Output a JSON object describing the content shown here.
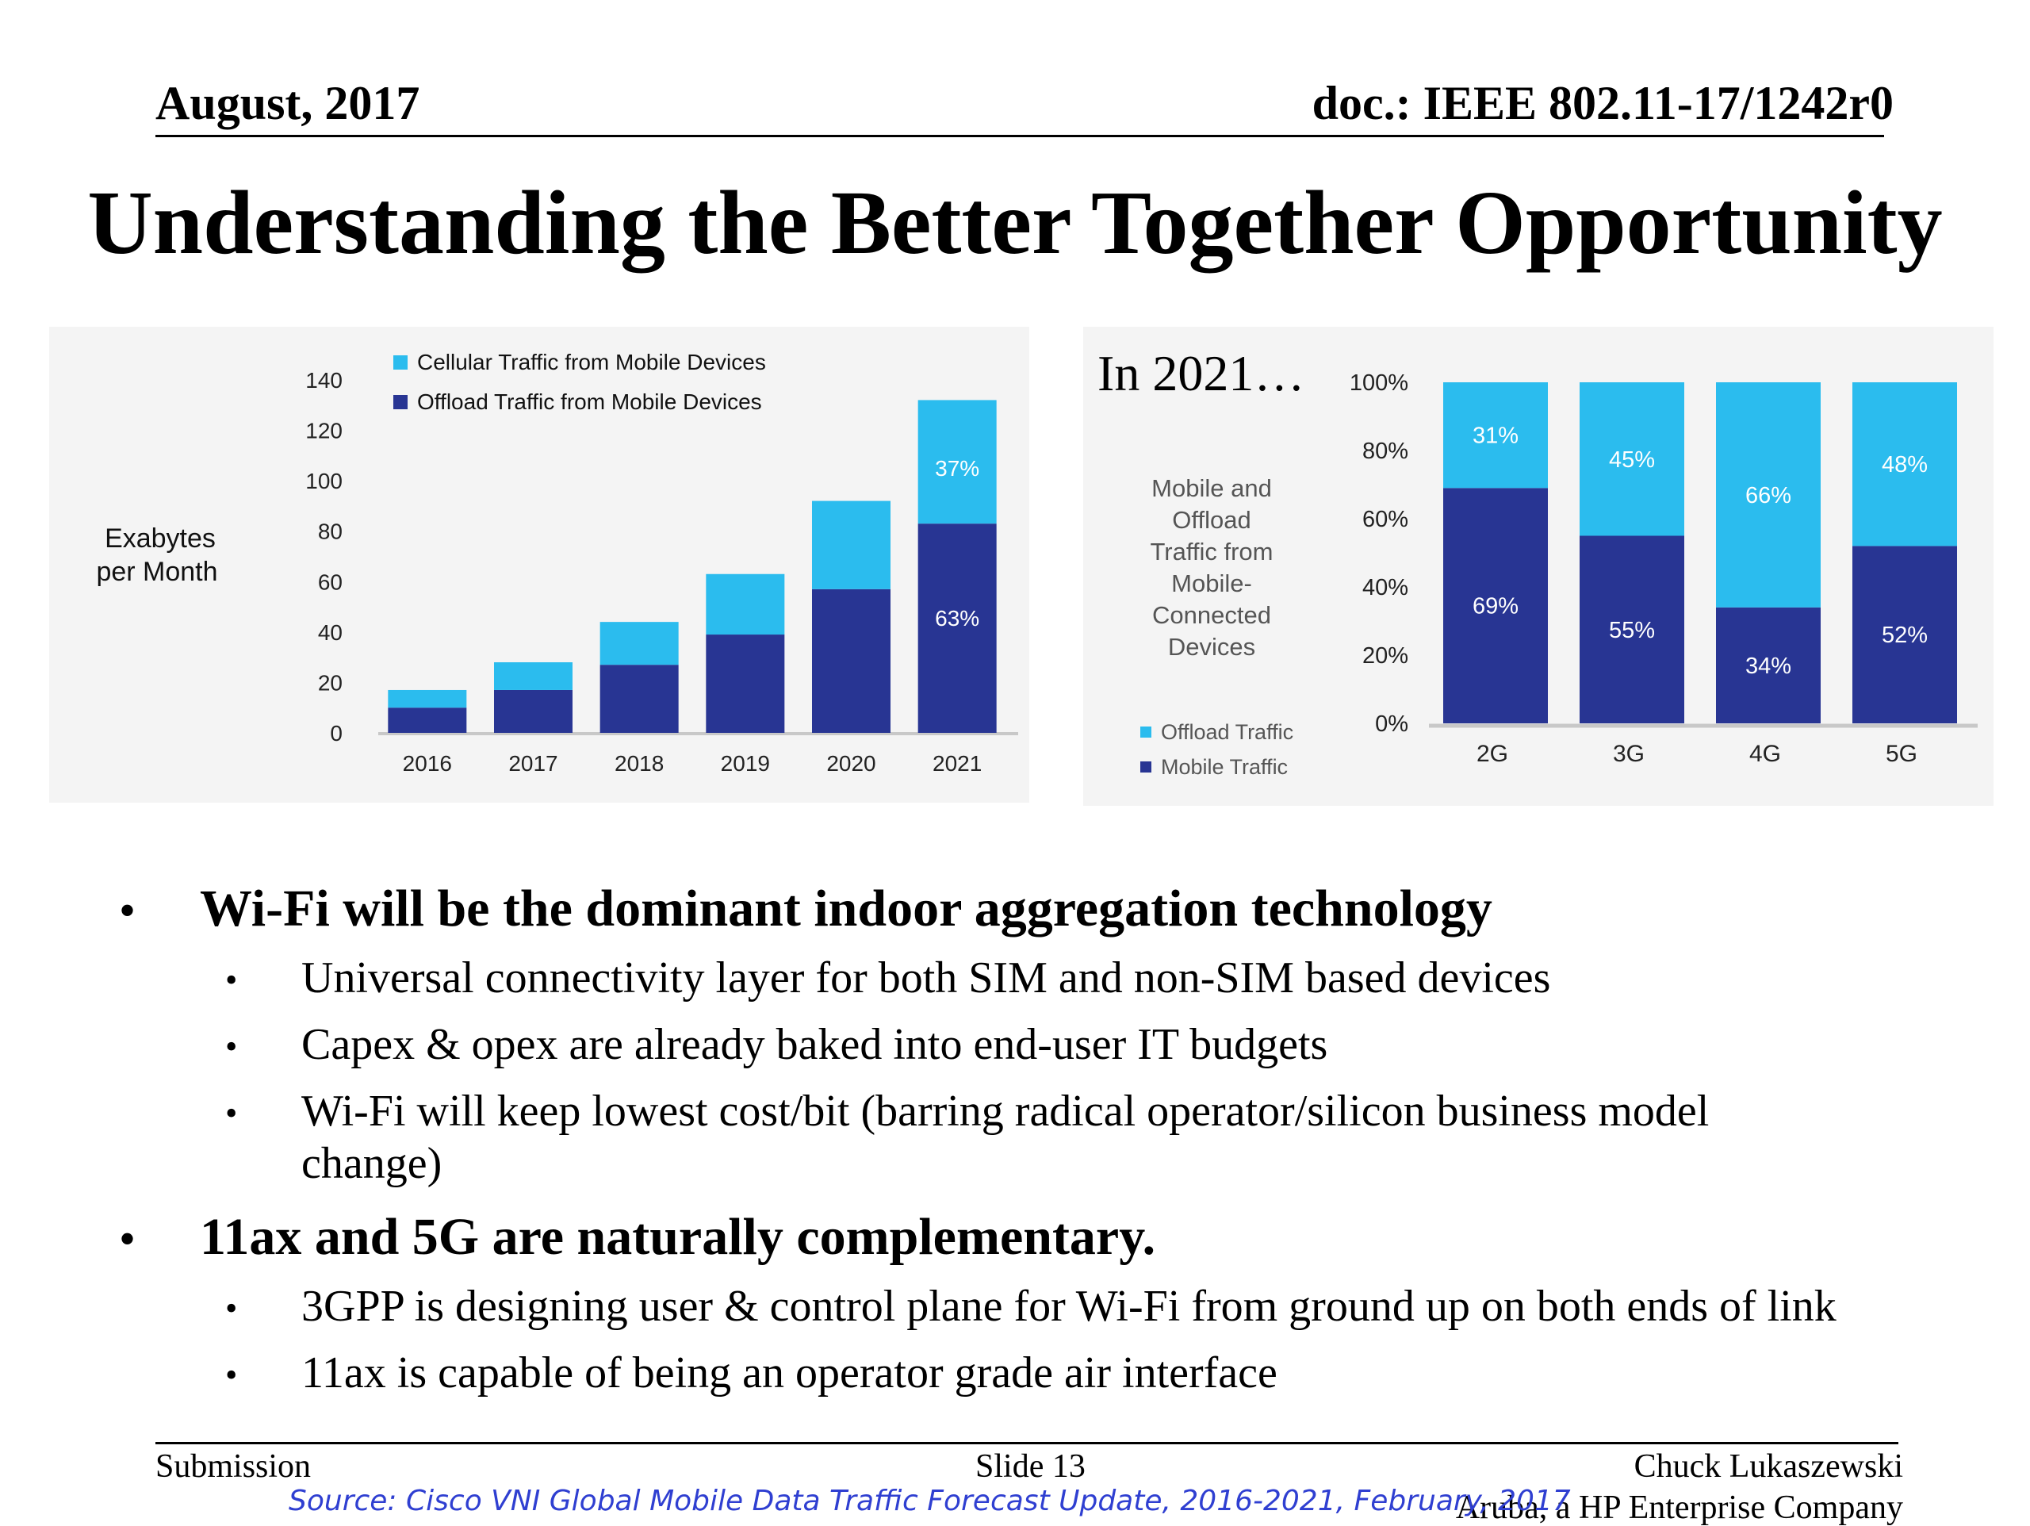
{
  "header": {
    "date": "August, 2017",
    "doc": "doc.: IEEE 802.11-17/1242r0"
  },
  "title": "Understanding the Better Together Opportunity",
  "colors": {
    "light_blue": "#2bbcee",
    "dark_blue": "#283593",
    "panel_bg": "#f4f4f4",
    "axis_line": "#c8c8c8",
    "muted_text": "#555555",
    "source_text": "#2f3fd1"
  },
  "chart_data": [
    {
      "type": "bar",
      "stacked": true,
      "categories": [
        "2016",
        "2017",
        "2018",
        "2019",
        "2020",
        "2021"
      ],
      "series": [
        {
          "name": "Offload Traffic from Mobile Devices",
          "values": [
            10,
            17,
            27,
            39,
            57,
            83
          ],
          "color": "#283593"
        },
        {
          "name": "Cellular Traffic from Mobile Devices",
          "values": [
            7,
            11,
            17,
            24,
            35,
            49
          ],
          "color": "#2bbcee"
        }
      ],
      "data_labels": [
        {
          "category": "2021",
          "series": "Cellular Traffic from Mobile Devices",
          "text": "37%"
        },
        {
          "category": "2021",
          "series": "Offload Traffic from Mobile Devices",
          "text": "63%"
        }
      ],
      "ylabel": "Exabytes per Month",
      "yticks": [
        0,
        20,
        40,
        60,
        80,
        100,
        120,
        140
      ],
      "ylim": [
        0,
        140
      ],
      "legend": "top-left"
    },
    {
      "type": "bar",
      "stacked": true,
      "percent": true,
      "heading": "In 2021…",
      "categories": [
        "2G",
        "3G",
        "4G",
        "5G"
      ],
      "series": [
        {
          "name": "Mobile Traffic",
          "values": [
            69,
            55,
            34,
            52
          ],
          "labels": [
            "69%",
            "55%",
            "34%",
            "52%"
          ],
          "color": "#283593"
        },
        {
          "name": "Offload Traffic",
          "values": [
            31,
            45,
            66,
            48
          ],
          "labels": [
            "31%",
            "45%",
            "66%",
            "48%"
          ],
          "color": "#2bbcee"
        }
      ],
      "ylabel": "Mobile and Offload Traffic from Mobile-Connected Devices",
      "yticks": [
        "0%",
        "20%",
        "40%",
        "60%",
        "80%",
        "100%"
      ],
      "ylim": [
        0,
        100
      ],
      "legend": "bottom-left"
    }
  ],
  "bullets": [
    {
      "text": "Wi-Fi will be the dominant indoor aggregation technology",
      "sub": [
        {
          "text": "Universal connectivity layer for both SIM and non-SIM based devices"
        },
        {
          "text": "Capex & opex are already baked into end-user IT budgets"
        },
        {
          "line1": "Wi-Fi will keep lowest cost/bit (barring radical operator/silicon business model",
          "line2": "change)"
        }
      ]
    },
    {
      "text": "11ax and 5G are naturally complementary.",
      "sub": [
        {
          "text": "3GPP is designing user & control plane for Wi-Fi from ground up on both ends of link"
        },
        {
          "text": "11ax is capable of being an operator grade air interface"
        }
      ]
    }
  ],
  "footer": {
    "left": "Submission",
    "center": "Slide 13",
    "author": "Chuck Lukaszewski",
    "company": "Aruba, a HP Enterprise Company",
    "source": "Source:  Cisco VNI Global Mobile Data Traffic Forecast Update, 2016-2021, February, 2017"
  }
}
